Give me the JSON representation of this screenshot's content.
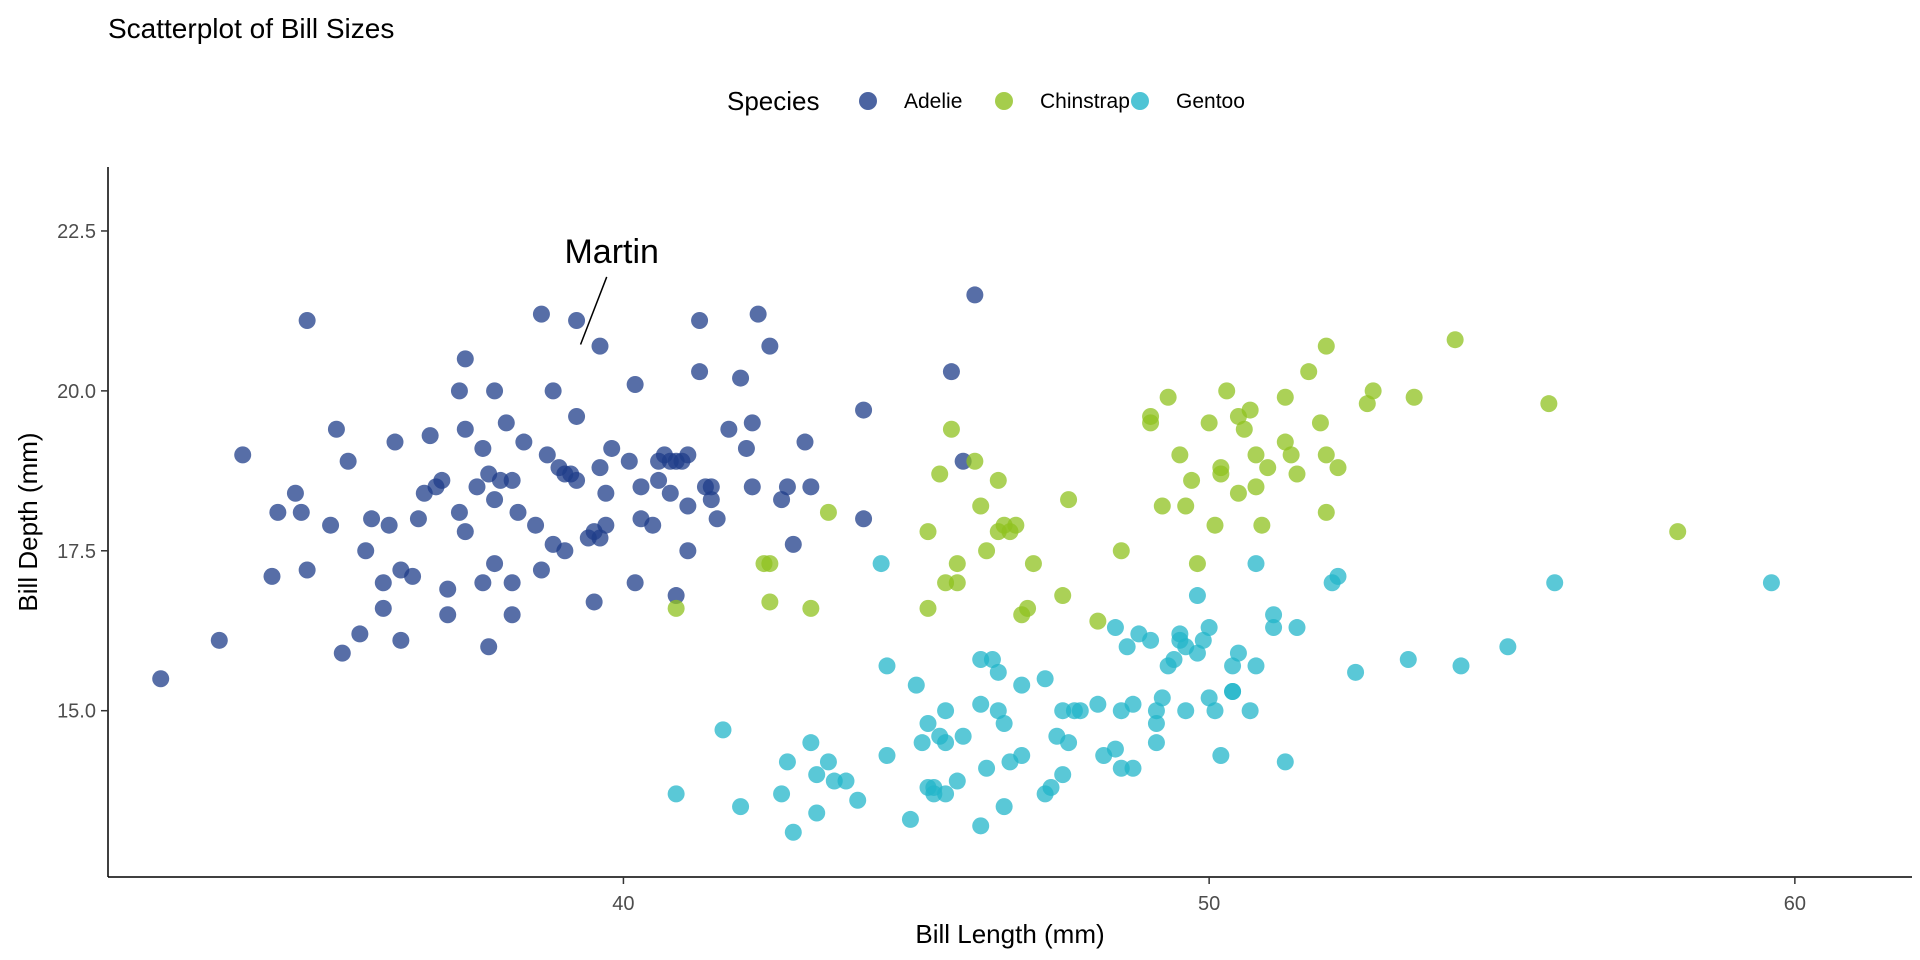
{
  "chart_data": {
    "type": "scatter",
    "title": "Scatterplot of Bill Sizes",
    "xlabel": "Bill Length (mm)",
    "ylabel": "Bill Depth (mm)",
    "xlim": [
      31.2,
      62.0
    ],
    "ylim": [
      12.4,
      23.5
    ],
    "xticks": [
      40,
      50,
      60
    ],
    "yticks": [
      15.0,
      17.5,
      20.0,
      22.5
    ],
    "xtick_labels": [
      "40",
      "50",
      "60"
    ],
    "ytick_labels": [
      "15.0",
      "17.5",
      "20.0",
      "22.5"
    ],
    "grid": false,
    "legend": {
      "title": "Species",
      "position": "top",
      "entries": [
        "Adelie",
        "Chinstrap",
        "Gentoo"
      ]
    },
    "annotation": {
      "text": "Martin",
      "point": [
        39.2,
        20.6
      ],
      "label_at": [
        39.8,
        22.0
      ]
    },
    "colors": {
      "Adelie": "#1f3d8a",
      "Chinstrap": "#8fc11f",
      "Gentoo": "#23b5ca"
    },
    "series": [
      {
        "name": "Adelie",
        "points": [
          [
            32.1,
            15.5
          ],
          [
            33.1,
            16.1
          ],
          [
            33.5,
            19.0
          ],
          [
            34.0,
            17.1
          ],
          [
            34.1,
            18.1
          ],
          [
            34.4,
            18.4
          ],
          [
            34.5,
            18.1
          ],
          [
            34.6,
            21.1
          ],
          [
            34.6,
            17.2
          ],
          [
            35.0,
            17.9
          ],
          [
            35.1,
            19.4
          ],
          [
            35.2,
            15.9
          ],
          [
            35.3,
            18.9
          ],
          [
            35.5,
            16.2
          ],
          [
            35.6,
            17.5
          ],
          [
            35.7,
            18.0
          ],
          [
            35.9,
            17.0
          ],
          [
            35.9,
            16.6
          ],
          [
            36.0,
            17.9
          ],
          [
            36.1,
            19.2
          ],
          [
            36.2,
            16.1
          ],
          [
            36.2,
            17.2
          ],
          [
            36.4,
            17.1
          ],
          [
            36.5,
            18.0
          ],
          [
            36.6,
            18.4
          ],
          [
            36.7,
            19.3
          ],
          [
            36.8,
            18.5
          ],
          [
            36.9,
            18.6
          ],
          [
            37.0,
            16.9
          ],
          [
            37.0,
            16.5
          ],
          [
            37.2,
            18.1
          ],
          [
            37.3,
            19.4
          ],
          [
            37.3,
            17.8
          ],
          [
            37.3,
            20.5
          ],
          [
            37.5,
            18.5
          ],
          [
            37.6,
            19.1
          ],
          [
            37.6,
            17.0
          ],
          [
            37.7,
            18.7
          ],
          [
            37.7,
            16.0
          ],
          [
            37.8,
            20.0
          ],
          [
            37.8,
            18.3
          ],
          [
            37.8,
            17.3
          ],
          [
            37.9,
            18.6
          ],
          [
            38.1,
            18.6
          ],
          [
            38.1,
            17.0
          ],
          [
            38.1,
            16.5
          ],
          [
            38.2,
            18.1
          ],
          [
            38.3,
            19.2
          ],
          [
            38.5,
            17.9
          ],
          [
            38.6,
            21.2
          ],
          [
            38.6,
            17.2
          ],
          [
            38.7,
            19.0
          ],
          [
            38.8,
            20.0
          ],
          [
            38.8,
            17.6
          ],
          [
            38.9,
            18.8
          ],
          [
            39.0,
            18.7
          ],
          [
            39.0,
            17.5
          ],
          [
            39.1,
            18.7
          ],
          [
            39.2,
            19.6
          ],
          [
            39.2,
            21.1
          ],
          [
            39.2,
            18.6
          ],
          [
            39.5,
            16.7
          ],
          [
            39.5,
            17.8
          ],
          [
            39.6,
            17.7
          ],
          [
            39.6,
            18.8
          ],
          [
            39.6,
            20.7
          ],
          [
            39.7,
            18.4
          ],
          [
            39.7,
            17.9
          ],
          [
            39.8,
            19.1
          ],
          [
            40.1,
            18.9
          ],
          [
            40.2,
            17.0
          ],
          [
            40.2,
            20.1
          ],
          [
            40.3,
            18.0
          ],
          [
            40.3,
            18.5
          ],
          [
            40.5,
            17.9
          ],
          [
            40.6,
            18.9
          ],
          [
            40.6,
            18.6
          ],
          [
            40.7,
            19.0
          ],
          [
            40.8,
            18.4
          ],
          [
            40.8,
            18.9
          ],
          [
            40.9,
            16.8
          ],
          [
            41.0,
            18.9
          ],
          [
            41.1,
            19.0
          ],
          [
            41.1,
            17.5
          ],
          [
            41.1,
            18.2
          ],
          [
            41.3,
            20.3
          ],
          [
            41.3,
            21.1
          ],
          [
            41.4,
            18.5
          ],
          [
            41.5,
            18.3
          ],
          [
            41.6,
            18.0
          ],
          [
            41.8,
            19.4
          ],
          [
            42.0,
            20.2
          ],
          [
            42.1,
            19.1
          ],
          [
            42.2,
            18.5
          ],
          [
            42.2,
            19.5
          ],
          [
            42.3,
            21.2
          ],
          [
            42.5,
            20.7
          ],
          [
            42.7,
            18.3
          ],
          [
            42.8,
            18.5
          ],
          [
            42.9,
            17.6
          ],
          [
            43.1,
            19.2
          ],
          [
            43.2,
            18.5
          ],
          [
            44.1,
            19.7
          ],
          [
            44.1,
            18.0
          ],
          [
            45.6,
            20.3
          ],
          [
            45.8,
            18.9
          ],
          [
            46.0,
            21.5
          ],
          [
            37.2,
            20.0
          ],
          [
            38.0,
            19.5
          ],
          [
            39.4,
            17.7
          ],
          [
            40.9,
            18.9
          ],
          [
            41.5,
            18.5
          ]
        ]
      },
      {
        "name": "Chinstrap",
        "points": [
          [
            40.9,
            16.6
          ],
          [
            42.4,
            17.3
          ],
          [
            42.5,
            16.7
          ],
          [
            42.5,
            17.3
          ],
          [
            43.2,
            16.6
          ],
          [
            43.5,
            18.1
          ],
          [
            45.2,
            17.8
          ],
          [
            45.2,
            16.6
          ],
          [
            45.4,
            18.7
          ],
          [
            45.5,
            17.0
          ],
          [
            45.6,
            19.4
          ],
          [
            45.7,
            17.3
          ],
          [
            45.7,
            17.0
          ],
          [
            46.0,
            18.9
          ],
          [
            46.1,
            18.2
          ],
          [
            46.2,
            17.5
          ],
          [
            46.4,
            18.6
          ],
          [
            46.4,
            17.8
          ],
          [
            46.5,
            17.9
          ],
          [
            46.6,
            17.8
          ],
          [
            46.7,
            17.9
          ],
          [
            46.8,
            16.5
          ],
          [
            46.9,
            16.6
          ],
          [
            47.0,
            17.3
          ],
          [
            47.5,
            16.8
          ],
          [
            47.6,
            18.3
          ],
          [
            48.1,
            16.4
          ],
          [
            48.5,
            17.5
          ],
          [
            49.0,
            19.5
          ],
          [
            49.0,
            19.6
          ],
          [
            49.2,
            18.2
          ],
          [
            49.3,
            19.9
          ],
          [
            49.5,
            19.0
          ],
          [
            49.6,
            18.2
          ],
          [
            49.7,
            18.6
          ],
          [
            49.8,
            17.3
          ],
          [
            50.0,
            19.5
          ],
          [
            50.1,
            17.9
          ],
          [
            50.2,
            18.8
          ],
          [
            50.2,
            18.7
          ],
          [
            50.3,
            20.0
          ],
          [
            50.5,
            19.6
          ],
          [
            50.5,
            18.4
          ],
          [
            50.6,
            19.4
          ],
          [
            50.7,
            19.7
          ],
          [
            50.8,
            18.5
          ],
          [
            50.8,
            19.0
          ],
          [
            50.9,
            17.9
          ],
          [
            51.0,
            18.8
          ],
          [
            51.3,
            19.9
          ],
          [
            51.3,
            19.2
          ],
          [
            51.4,
            19.0
          ],
          [
            51.5,
            18.7
          ],
          [
            51.7,
            20.3
          ],
          [
            51.9,
            19.5
          ],
          [
            52.0,
            18.1
          ],
          [
            52.0,
            19.0
          ],
          [
            52.0,
            20.7
          ],
          [
            52.2,
            18.8
          ],
          [
            52.7,
            19.8
          ],
          [
            52.8,
            20.0
          ],
          [
            53.5,
            19.9
          ],
          [
            54.2,
            20.8
          ],
          [
            55.8,
            19.8
          ],
          [
            58.0,
            17.8
          ]
        ]
      },
      {
        "name": "Gentoo",
        "points": [
          [
            40.9,
            13.7
          ],
          [
            41.7,
            14.7
          ],
          [
            42.0,
            13.5
          ],
          [
            42.7,
            13.7
          ],
          [
            42.8,
            14.2
          ],
          [
            42.9,
            13.1
          ],
          [
            43.2,
            14.5
          ],
          [
            43.3,
            13.4
          ],
          [
            43.3,
            14.0
          ],
          [
            43.5,
            14.2
          ],
          [
            43.6,
            13.9
          ],
          [
            43.8,
            13.9
          ],
          [
            44.0,
            13.6
          ],
          [
            44.4,
            17.3
          ],
          [
            44.5,
            14.3
          ],
          [
            44.5,
            15.7
          ],
          [
            44.9,
            13.3
          ],
          [
            45.0,
            15.4
          ],
          [
            45.1,
            14.5
          ],
          [
            45.2,
            13.8
          ],
          [
            45.2,
            14.8
          ],
          [
            45.3,
            13.7
          ],
          [
            45.3,
            13.8
          ],
          [
            45.4,
            14.6
          ],
          [
            45.5,
            13.7
          ],
          [
            45.5,
            15.0
          ],
          [
            45.5,
            14.5
          ],
          [
            45.7,
            13.9
          ],
          [
            45.8,
            14.6
          ],
          [
            46.1,
            13.2
          ],
          [
            46.1,
            15.1
          ],
          [
            46.2,
            14.1
          ],
          [
            46.3,
            15.8
          ],
          [
            46.4,
            15.6
          ],
          [
            46.4,
            15.0
          ],
          [
            46.5,
            13.5
          ],
          [
            46.5,
            14.8
          ],
          [
            46.6,
            14.2
          ],
          [
            46.8,
            14.3
          ],
          [
            46.8,
            15.4
          ],
          [
            47.2,
            13.7
          ],
          [
            47.2,
            15.5
          ],
          [
            47.3,
            13.8
          ],
          [
            47.4,
            14.6
          ],
          [
            47.5,
            14.0
          ],
          [
            47.5,
            15.0
          ],
          [
            47.6,
            14.5
          ],
          [
            47.7,
            15.0
          ],
          [
            48.1,
            15.1
          ],
          [
            48.2,
            14.3
          ],
          [
            48.4,
            14.4
          ],
          [
            48.4,
            16.3
          ],
          [
            48.5,
            14.1
          ],
          [
            48.5,
            15.0
          ],
          [
            48.6,
            16.0
          ],
          [
            48.7,
            14.1
          ],
          [
            48.7,
            15.1
          ],
          [
            48.8,
            16.2
          ],
          [
            49.1,
            14.5
          ],
          [
            49.1,
            14.8
          ],
          [
            49.1,
            15.0
          ],
          [
            49.2,
            15.2
          ],
          [
            49.3,
            15.7
          ],
          [
            49.4,
            15.8
          ],
          [
            49.5,
            16.1
          ],
          [
            49.5,
            16.2
          ],
          [
            49.6,
            15.0
          ],
          [
            49.6,
            16.0
          ],
          [
            49.8,
            15.9
          ],
          [
            49.8,
            16.8
          ],
          [
            49.9,
            16.1
          ],
          [
            50.0,
            15.2
          ],
          [
            50.0,
            16.3
          ],
          [
            50.1,
            15.0
          ],
          [
            50.2,
            14.3
          ],
          [
            50.4,
            15.3
          ],
          [
            50.4,
            15.7
          ],
          [
            50.5,
            15.9
          ],
          [
            50.7,
            15.0
          ],
          [
            50.8,
            15.7
          ],
          [
            50.8,
            17.3
          ],
          [
            51.1,
            16.3
          ],
          [
            51.1,
            16.5
          ],
          [
            51.3,
            14.2
          ],
          [
            51.5,
            16.3
          ],
          [
            52.1,
            17.0
          ],
          [
            52.2,
            17.1
          ],
          [
            52.5,
            15.6
          ],
          [
            53.4,
            15.8
          ],
          [
            54.3,
            15.7
          ],
          [
            55.1,
            16.0
          ],
          [
            55.9,
            17.0
          ],
          [
            59.6,
            17.0
          ],
          [
            46.1,
            15.8
          ],
          [
            47.8,
            15.0
          ],
          [
            49.0,
            16.1
          ],
          [
            50.4,
            15.3
          ]
        ]
      }
    ]
  }
}
